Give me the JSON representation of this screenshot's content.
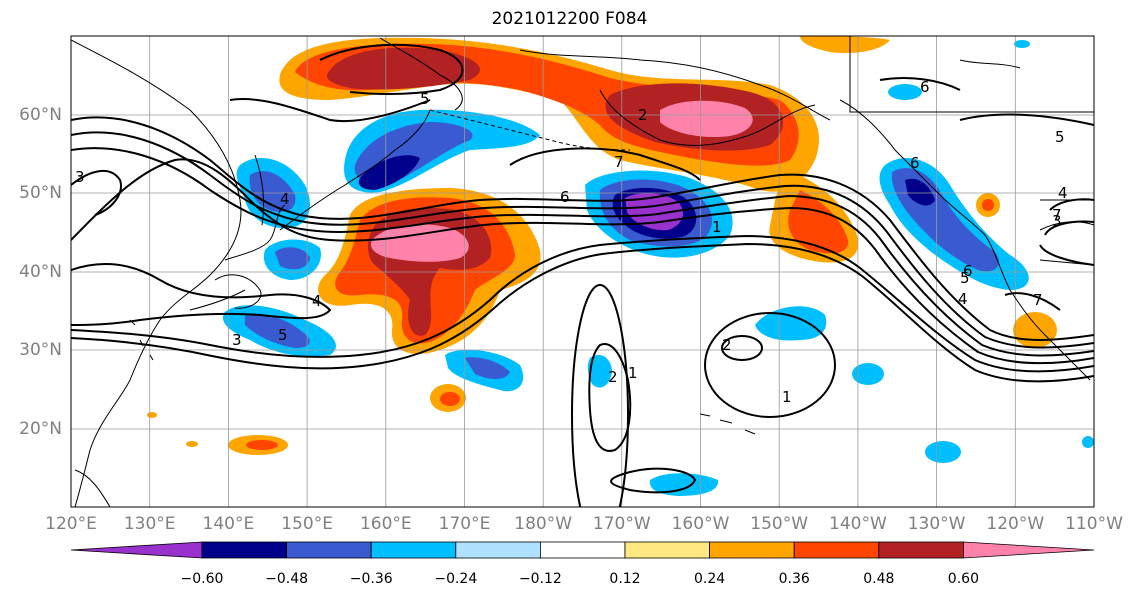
{
  "title": "2021012200 F084",
  "longitude_labels": [
    "120°E",
    "130°E",
    "140°E",
    "150°E",
    "160°E",
    "170°E",
    "180°W",
    "170°W",
    "160°W",
    "150°W",
    "140°W",
    "130°W",
    "120°W",
    "110°W"
  ],
  "latitude_labels": [
    "20°N",
    "30°N",
    "40°N",
    "50°N",
    "60°N"
  ],
  "colorbar": {
    "tick_labels": [
      "−0.60",
      "−0.48",
      "−0.36",
      "−0.24",
      "−0.12",
      "0.12",
      "0.24",
      "0.36",
      "0.48",
      "0.60"
    ],
    "colors": [
      "#9932CC",
      "#00008B",
      "#3A5BD0",
      "#00BFFF",
      "#B0E2FF",
      "#FFFFFF",
      "#FFE882",
      "#FFA500",
      "#FF4500",
      "#B22222",
      "#FF82AB"
    ]
  },
  "contour_labels": [
    "3",
    "4",
    "5",
    "6",
    "7",
    "1",
    "2",
    "6",
    "5",
    "4",
    "3",
    "4",
    "5",
    "6",
    "7",
    "6",
    "4",
    "1",
    "2",
    "1",
    "2",
    "3",
    "5",
    "7"
  ]
}
